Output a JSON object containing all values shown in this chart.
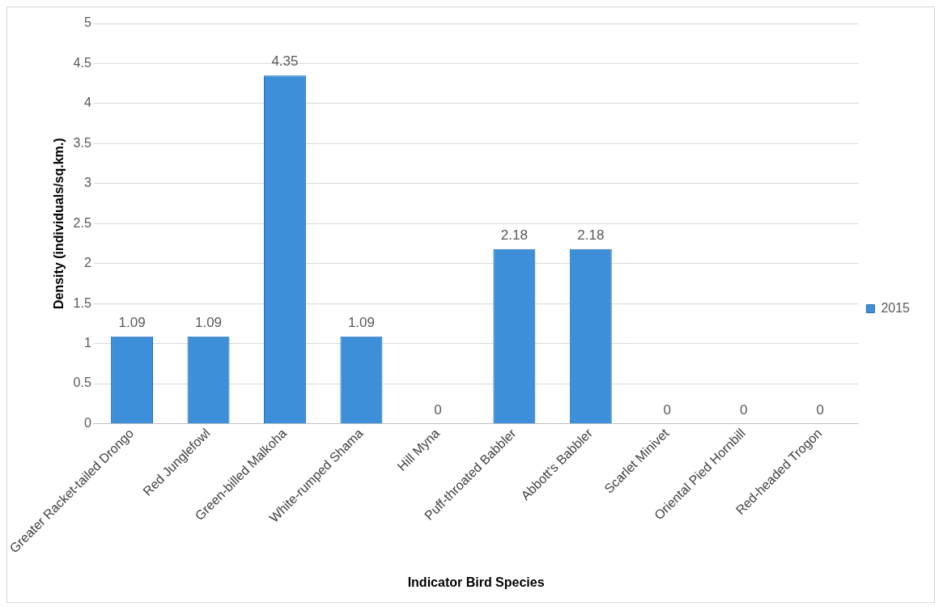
{
  "chart_data": {
    "type": "bar",
    "xlabel": "Indicator Bird Species",
    "ylabel": "Density (individuals/sq.km.)",
    "categories": [
      "Greater Racket-tailed Drongo",
      "Red Junglefowl",
      "Green-billed Malkoha",
      "White-rumped Shama",
      "Hill Myna",
      "Puff-throated Babbler",
      "Abbott's Babbler",
      "Scarlet Minivet",
      "Oriental Pied Hornbill",
      "Red-headed Trogon"
    ],
    "series": [
      {
        "name": "2015",
        "color": "#3d8fd9",
        "values": [
          1.09,
          1.09,
          4.35,
          1.09,
          0,
          2.18,
          2.18,
          0,
          0,
          0
        ]
      }
    ],
    "ylim": [
      0,
      5
    ],
    "yticks": [
      0,
      0.5,
      1,
      1.5,
      2,
      2.5,
      3,
      3.5,
      4,
      4.5,
      5
    ],
    "grid": "y",
    "legend": "right",
    "data_labels": true
  }
}
